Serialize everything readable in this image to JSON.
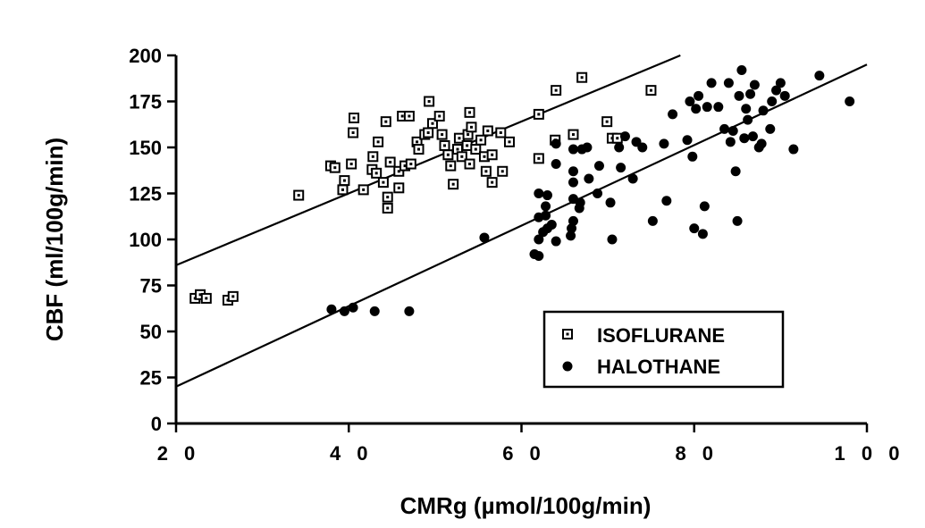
{
  "chart_data": {
    "type": "scatter",
    "xlabel": "CMRg (µmol/100g/min)",
    "ylabel": "CBF (ml/100g/min)",
    "xlim": [
      20,
      100
    ],
    "ylim": [
      0,
      200
    ],
    "x_ticks": [
      20,
      40,
      60,
      80,
      100
    ],
    "x_tick_labels": [
      "2 0",
      "4 0",
      "6 0",
      "8 0",
      "1 0 0"
    ],
    "y_ticks": [
      0,
      25,
      50,
      75,
      100,
      125,
      150,
      175,
      200
    ],
    "y_tick_labels": [
      "0",
      "25",
      "50",
      "75",
      "100",
      "125",
      "150",
      "175",
      "200"
    ],
    "grid": false,
    "legend": {
      "position": "lower-right",
      "entries": [
        "ISOFLURANE",
        "HALOTHANE"
      ]
    },
    "series": [
      {
        "name": "ISOFLURANE",
        "marker": "open-square",
        "regression_line": {
          "x": [
            20,
            78.4
          ],
          "y": [
            86,
            200
          ]
        },
        "points": [
          [
            22.2,
            68
          ],
          [
            22.8,
            70
          ],
          [
            23.5,
            68
          ],
          [
            26,
            67
          ],
          [
            26.6,
            69
          ],
          [
            34.2,
            124
          ],
          [
            37.9,
            140
          ],
          [
            38.4,
            139
          ],
          [
            39.3,
            127
          ],
          [
            39.5,
            132
          ],
          [
            40.3,
            141
          ],
          [
            40.5,
            158
          ],
          [
            40.6,
            166
          ],
          [
            41.7,
            127
          ],
          [
            42.7,
            138
          ],
          [
            42.8,
            145
          ],
          [
            43.2,
            136
          ],
          [
            43.4,
            153
          ],
          [
            44,
            131
          ],
          [
            44.3,
            164
          ],
          [
            44.5,
            117
          ],
          [
            44.5,
            123
          ],
          [
            44.8,
            142
          ],
          [
            45.8,
            137
          ],
          [
            45.8,
            128
          ],
          [
            46.2,
            167
          ],
          [
            46.5,
            140
          ],
          [
            47,
            167
          ],
          [
            47.2,
            141
          ],
          [
            47.9,
            153
          ],
          [
            48.1,
            149
          ],
          [
            48.8,
            157
          ],
          [
            49.2,
            158
          ],
          [
            49.3,
            175
          ],
          [
            49.7,
            163
          ],
          [
            50.5,
            167
          ],
          [
            50.8,
            157
          ],
          [
            51.1,
            151
          ],
          [
            51.5,
            146
          ],
          [
            51.8,
            140
          ],
          [
            52.1,
            130
          ],
          [
            52.6,
            149
          ],
          [
            52.8,
            155
          ],
          [
            53.1,
            145
          ],
          [
            53.7,
            151
          ],
          [
            53.8,
            157
          ],
          [
            54,
            141
          ],
          [
            54,
            169
          ],
          [
            54.2,
            161
          ],
          [
            54.7,
            149
          ],
          [
            55.3,
            154
          ],
          [
            55.7,
            145
          ],
          [
            55.9,
            137
          ],
          [
            56.1,
            159
          ],
          [
            56.6,
            131
          ],
          [
            56.6,
            146
          ],
          [
            57.6,
            158
          ],
          [
            57.8,
            137
          ],
          [
            58.6,
            153
          ],
          [
            62,
            144
          ],
          [
            62,
            168
          ],
          [
            64,
            181
          ],
          [
            63.9,
            154
          ],
          [
            66,
            157
          ],
          [
            67,
            188
          ],
          [
            69.9,
            164
          ],
          [
            70.5,
            155
          ],
          [
            71.1,
            155
          ],
          [
            75,
            181
          ]
        ]
      },
      {
        "name": "HALOTHANE",
        "marker": "filled-circle",
        "regression_line": {
          "x": [
            20,
            100
          ],
          "y": [
            20,
            195
          ]
        },
        "points": [
          [
            38,
            62
          ],
          [
            39.5,
            61
          ],
          [
            40.5,
            63
          ],
          [
            43,
            61
          ],
          [
            47,
            61
          ],
          [
            55.7,
            101
          ],
          [
            61.5,
            92
          ],
          [
            62,
            91
          ],
          [
            62,
            100
          ],
          [
            62,
            112
          ],
          [
            62,
            125
          ],
          [
            62.5,
            104
          ],
          [
            62.8,
            118
          ],
          [
            62.8,
            113
          ],
          [
            63,
            106
          ],
          [
            63,
            124
          ],
          [
            63.5,
            108
          ],
          [
            64,
            99
          ],
          [
            64,
            141
          ],
          [
            64,
            152
          ],
          [
            65.7,
            102
          ],
          [
            65.8,
            106
          ],
          [
            66,
            110
          ],
          [
            66,
            122
          ],
          [
            66,
            131
          ],
          [
            66,
            137
          ],
          [
            66,
            149
          ],
          [
            66.7,
            117
          ],
          [
            66.8,
            120
          ],
          [
            67,
            149
          ],
          [
            67.6,
            150
          ],
          [
            67.8,
            133
          ],
          [
            68.8,
            125
          ],
          [
            69,
            140
          ],
          [
            70.3,
            120
          ],
          [
            70.5,
            100
          ],
          [
            71.3,
            150
          ],
          [
            71.5,
            139
          ],
          [
            72,
            156
          ],
          [
            72.9,
            133
          ],
          [
            73.3,
            153
          ],
          [
            74,
            150
          ],
          [
            75.2,
            110
          ],
          [
            76.5,
            152
          ],
          [
            76.8,
            121
          ],
          [
            77.5,
            168
          ],
          [
            79.2,
            154
          ],
          [
            79.5,
            175
          ],
          [
            79.8,
            145
          ],
          [
            80,
            106
          ],
          [
            80.2,
            171
          ],
          [
            80.5,
            178
          ],
          [
            81,
            103
          ],
          [
            81.2,
            118
          ],
          [
            81.5,
            172
          ],
          [
            82,
            185
          ],
          [
            82.8,
            172
          ],
          [
            83.5,
            160
          ],
          [
            84,
            185
          ],
          [
            84.2,
            153
          ],
          [
            84.5,
            159
          ],
          [
            84.8,
            137
          ],
          [
            85,
            110
          ],
          [
            85.2,
            178
          ],
          [
            85.5,
            192
          ],
          [
            85.8,
            155
          ],
          [
            86,
            171
          ],
          [
            86.2,
            165
          ],
          [
            86.5,
            179
          ],
          [
            86.8,
            156
          ],
          [
            87,
            184
          ],
          [
            87.5,
            150
          ],
          [
            87.8,
            152
          ],
          [
            88,
            170
          ],
          [
            88.8,
            160
          ],
          [
            89,
            175
          ],
          [
            89.5,
            181
          ],
          [
            90,
            185
          ],
          [
            90.5,
            178
          ],
          [
            91.5,
            149
          ],
          [
            94.5,
            189
          ],
          [
            98,
            175
          ]
        ]
      }
    ]
  }
}
